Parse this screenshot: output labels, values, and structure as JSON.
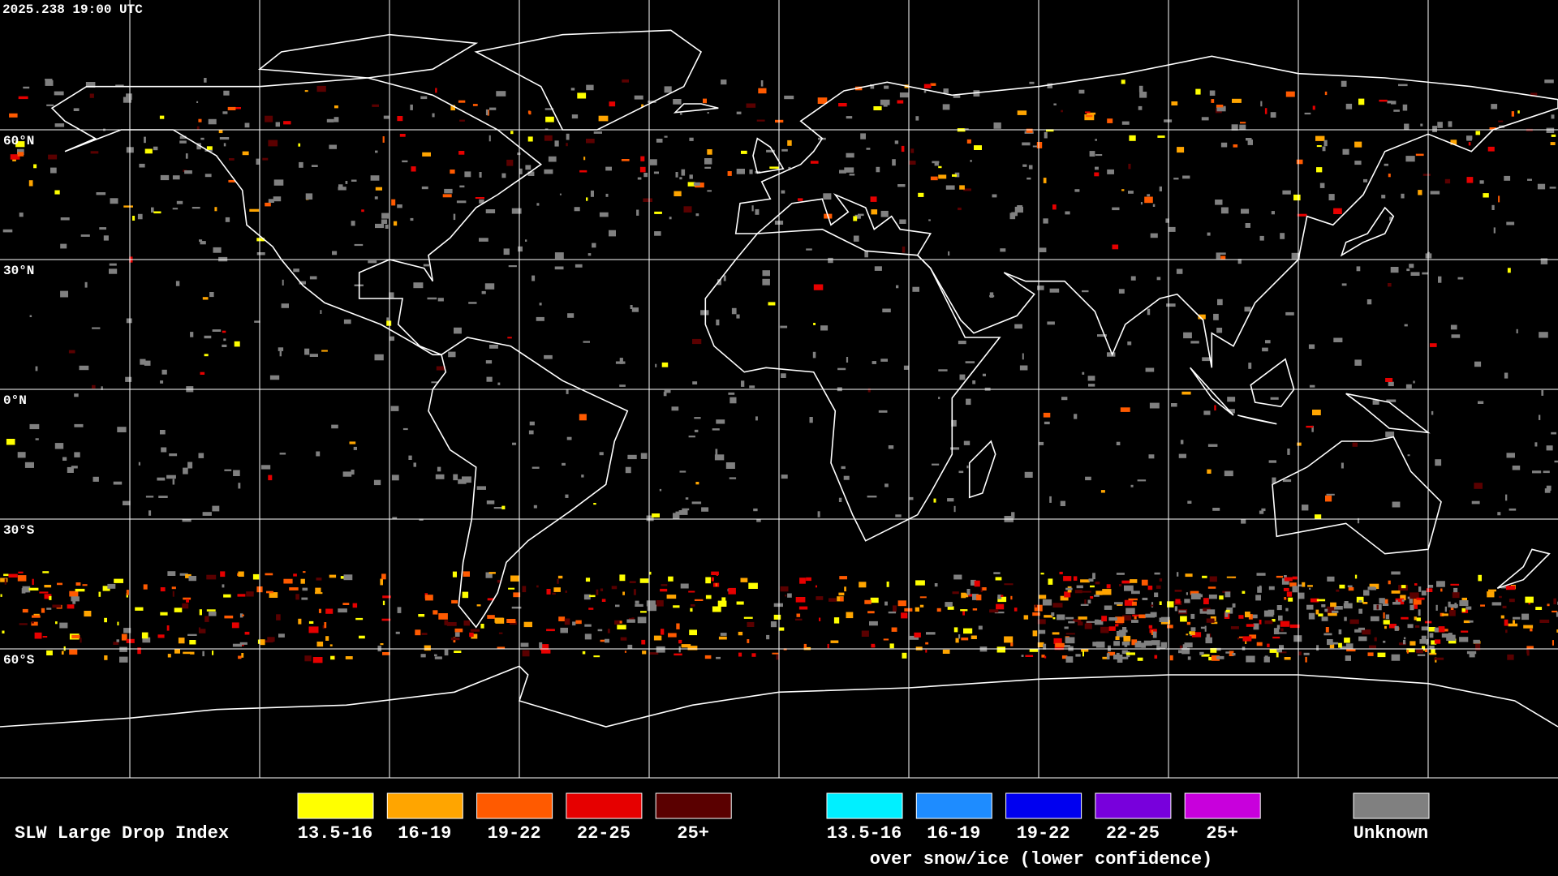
{
  "timestamp": "2025.238 19:00 UTC",
  "latitude_labels": [
    "60°N",
    "30°N",
    "0°N",
    "30°S",
    "60°S"
  ],
  "legend": {
    "title": "SLW Large Drop Index",
    "items": [
      {
        "label": "13.5-16",
        "color": "#ffff00"
      },
      {
        "label": "16-19",
        "color": "#ffa500"
      },
      {
        "label": "19-22",
        "color": "#ff5a00"
      },
      {
        "label": "22-25",
        "color": "#e60000"
      },
      {
        "label": "25+",
        "color": "#5a0000"
      }
    ],
    "snow_items": [
      {
        "label": "13.5-16",
        "color": "#00f0ff"
      },
      {
        "label": "16-19",
        "color": "#1e8cff"
      },
      {
        "label": "19-22",
        "color": "#0000f0"
      },
      {
        "label": "22-25",
        "color": "#7800dc"
      },
      {
        "label": "25+",
        "color": "#c800dc"
      }
    ],
    "snow_caption": "over snow/ice (lower confidence)",
    "unknown": {
      "label": "Unknown",
      "color": "#808080"
    }
  }
}
